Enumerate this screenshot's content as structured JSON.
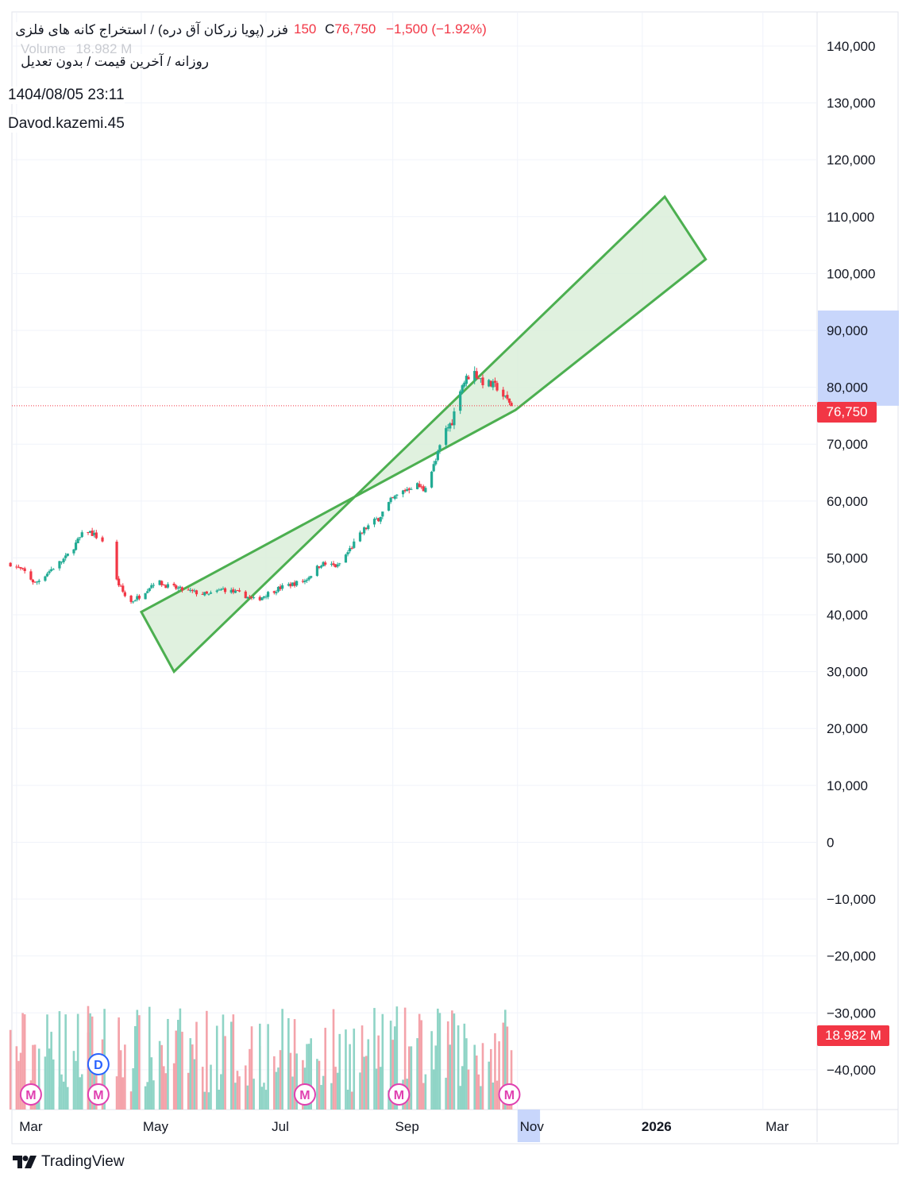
{
  "legend": {
    "symbol": "فزر (پویا زرکان آق دره) / استخراج کانه های فلزی",
    "subtitle": "روزانه / آخرین قیمت / بدون تعدیل",
    "ohlc_tail": "150",
    "close_label": "C",
    "close_value": "76,750",
    "change": "−1,500 (−1.92%)",
    "volume_label": "Volume",
    "volume_value": "18.982 M",
    "timestamp": "1404/08/05 23:11",
    "author": "Davod.kazemi.45"
  },
  "footer": {
    "brand": "TradingView"
  },
  "colors": {
    "up": "#22ab94",
    "down": "#f23645",
    "vol_up": "#8fd4c6",
    "vol_down": "#f4a3aa",
    "channel_stroke": "#4caf50",
    "channel_fill": "#dbefd9",
    "highlight": "#c8d6fb",
    "marker": "#e040b0",
    "dividend": "#2962ff"
  },
  "chart_data": {
    "type": "candlestick",
    "last_price": 76750,
    "last_price_label": "76,750",
    "last_volume_label": "18.982 M",
    "price_axis": {
      "ticks": [
        140000,
        130000,
        120000,
        110000,
        100000,
        90000,
        80000,
        70000,
        60000,
        50000,
        40000,
        30000,
        20000,
        10000,
        0,
        -10000,
        -20000,
        -30000,
        -40000
      ],
      "labels": [
        "140,000",
        "130,000",
        "120,000",
        "110,000",
        "100,000",
        "90,000",
        "80,000",
        "70,000",
        "60,000",
        "50,000",
        "40,000",
        "30,000",
        "20,000",
        "10,000",
        "0",
        "−10,000",
        "−20,000",
        "−30,000",
        "−40,000"
      ],
      "ylim": [
        -47000,
        146000
      ]
    },
    "time_axis": {
      "labels": [
        {
          "text": "Mar",
          "date": "2025-03-01",
          "bold": false
        },
        {
          "text": "May",
          "date": "2025-05-01",
          "bold": false
        },
        {
          "text": "Jul",
          "date": "2025-07-01",
          "bold": false
        },
        {
          "text": "Sep",
          "date": "2025-09-01",
          "bold": false
        },
        {
          "text": "Nov",
          "date": "2025-11-01",
          "bold": false
        },
        {
          "text": "2026",
          "date": "2026-01-01",
          "bold": true
        },
        {
          "text": "Mar",
          "date": "2026-03-01",
          "bold": false
        }
      ]
    },
    "price_path": [
      [
        "2025-02-26",
        49000
      ],
      [
        "2025-03-05",
        47500
      ],
      [
        "2025-03-10",
        45500
      ],
      [
        "2025-03-18",
        48000
      ],
      [
        "2025-03-25",
        50000
      ],
      [
        "2025-03-30",
        52500
      ],
      [
        "2025-04-04",
        55000
      ],
      [
        "2025-04-12",
        53000
      ],
      [
        "2025-04-15",
        52000
      ],
      [
        "2025-04-19",
        46000
      ],
      [
        "2025-04-25",
        42000
      ],
      [
        "2025-05-01",
        43500
      ],
      [
        "2025-05-08",
        46000
      ],
      [
        "2025-05-14",
        45000
      ],
      [
        "2025-05-20",
        44500
      ],
      [
        "2025-05-26",
        44000
      ],
      [
        "2025-06-03",
        43500
      ],
      [
        "2025-06-10",
        44500
      ],
      [
        "2025-06-20",
        43500
      ],
      [
        "2025-06-26",
        42500
      ],
      [
        "2025-07-03",
        44000
      ],
      [
        "2025-07-10",
        45000
      ],
      [
        "2025-07-20",
        46000
      ],
      [
        "2025-07-28",
        49000
      ],
      [
        "2025-08-05",
        48500
      ],
      [
        "2025-08-12",
        52000
      ],
      [
        "2025-08-18",
        55000
      ],
      [
        "2025-08-25",
        57000
      ],
      [
        "2025-08-31",
        60000
      ],
      [
        "2025-09-05",
        61500
      ],
      [
        "2025-09-12",
        63000
      ],
      [
        "2025-09-16",
        62000
      ],
      [
        "2025-09-22",
        67000
      ],
      [
        "2025-09-26",
        72000
      ],
      [
        "2025-09-30",
        74000
      ],
      [
        "2025-10-04",
        80000
      ],
      [
        "2025-10-08",
        82000
      ],
      [
        "2025-10-10",
        83000
      ],
      [
        "2025-10-15",
        81000
      ],
      [
        "2025-10-22",
        80000
      ],
      [
        "2025-10-26",
        78000
      ],
      [
        "2025-10-28",
        77500
      ],
      [
        "2025-10-30",
        76750
      ]
    ],
    "gaps": [
      [
        "2025-04-13",
        "2025-04-16"
      ]
    ],
    "volume_tall_bars": [
      {
        "date": "2025-03-22",
        "value": -29700
      },
      {
        "date": "2025-04-05",
        "value": -28800
      },
      {
        "date": "2025-04-13",
        "value": -29300
      },
      {
        "date": "2025-04-20",
        "value": -31300
      },
      {
        "date": "2025-06-28",
        "value": -31900
      },
      {
        "date": "2025-09-28",
        "value": -31500
      },
      {
        "date": "2025-10-03",
        "value": -32200
      },
      {
        "date": "2025-10-23",
        "value": -35000
      }
    ],
    "channel": {
      "label": "",
      "points": [
        [
          "2025-05-01",
          40500
        ],
        [
          "2025-10-31",
          76000
        ],
        [
          "2026-02-01",
          102500
        ],
        [
          "2026-01-12",
          113500
        ],
        [
          "2025-05-17",
          30000
        ]
      ]
    },
    "highlight_price_range": [
      76750,
      93500
    ],
    "highlight_time_range": [
      "2025-11-01",
      "2025-11-12"
    ],
    "event_markers": [
      {
        "label": "M",
        "date": "2025-03-08"
      },
      {
        "label": "M",
        "date": "2025-04-10"
      },
      {
        "label": "M",
        "date": "2025-07-20"
      },
      {
        "label": "M",
        "date": "2025-09-04"
      },
      {
        "label": "M",
        "date": "2025-10-28"
      },
      {
        "label": "D",
        "date": "2025-04-10",
        "stacked": true
      }
    ]
  }
}
